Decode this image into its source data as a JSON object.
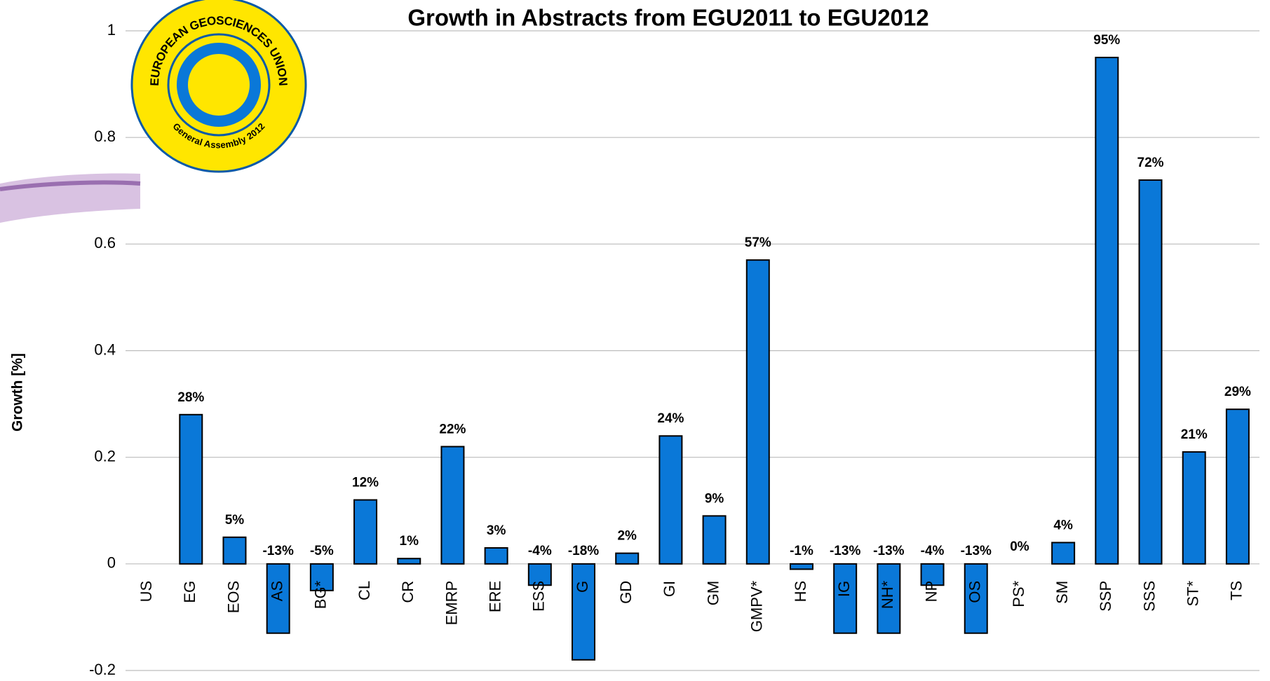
{
  "chart_data": {
    "type": "bar",
    "title": "Growth in Abstracts from EGU2011 to EGU2012",
    "y_label": "Growth [%]",
    "categories": [
      "US",
      "EG",
      "EOS",
      "AS",
      "BG*",
      "CL",
      "CR",
      "EMRP",
      "ERE",
      "ESS",
      "G",
      "GD",
      "GI",
      "GM",
      "GMPV*",
      "HS",
      "IG",
      "NH*",
      "NP",
      "OS",
      "PS*",
      "SM",
      "SSP",
      "SSS",
      "ST*",
      "TS"
    ],
    "values": [
      null,
      0.28,
      0.05,
      -0.13,
      -0.05,
      0.12,
      0.01,
      0.22,
      0.03,
      -0.04,
      -0.18,
      0.02,
      0.24,
      0.09,
      0.57,
      -0.01,
      -0.13,
      -0.13,
      -0.04,
      -0.13,
      0.0,
      0.04,
      0.95,
      0.72,
      0.21,
      0.29
    ],
    "value_labels": [
      null,
      "28%",
      "5%",
      "-13%",
      "-5%",
      "12%",
      "1%",
      "22%",
      "3%",
      "-4%",
      "-18%",
      "2%",
      "24%",
      "9%",
      "57%",
      "-1%",
      "-13%",
      "-13%",
      "-4%",
      "-13%",
      "0%",
      "4%",
      "95%",
      "72%",
      "21%",
      "29%"
    ],
    "color": "#0a78d8",
    "ylim": [
      -0.2,
      1
    ],
    "yticks": [
      -0.2,
      0,
      0.2,
      0.4,
      0.6,
      0.8,
      1
    ],
    "grid": true
  },
  "logo": {
    "top": "EUROPEAN GEOSCIENCES UNION",
    "bottom": "General Assembly 2012"
  }
}
